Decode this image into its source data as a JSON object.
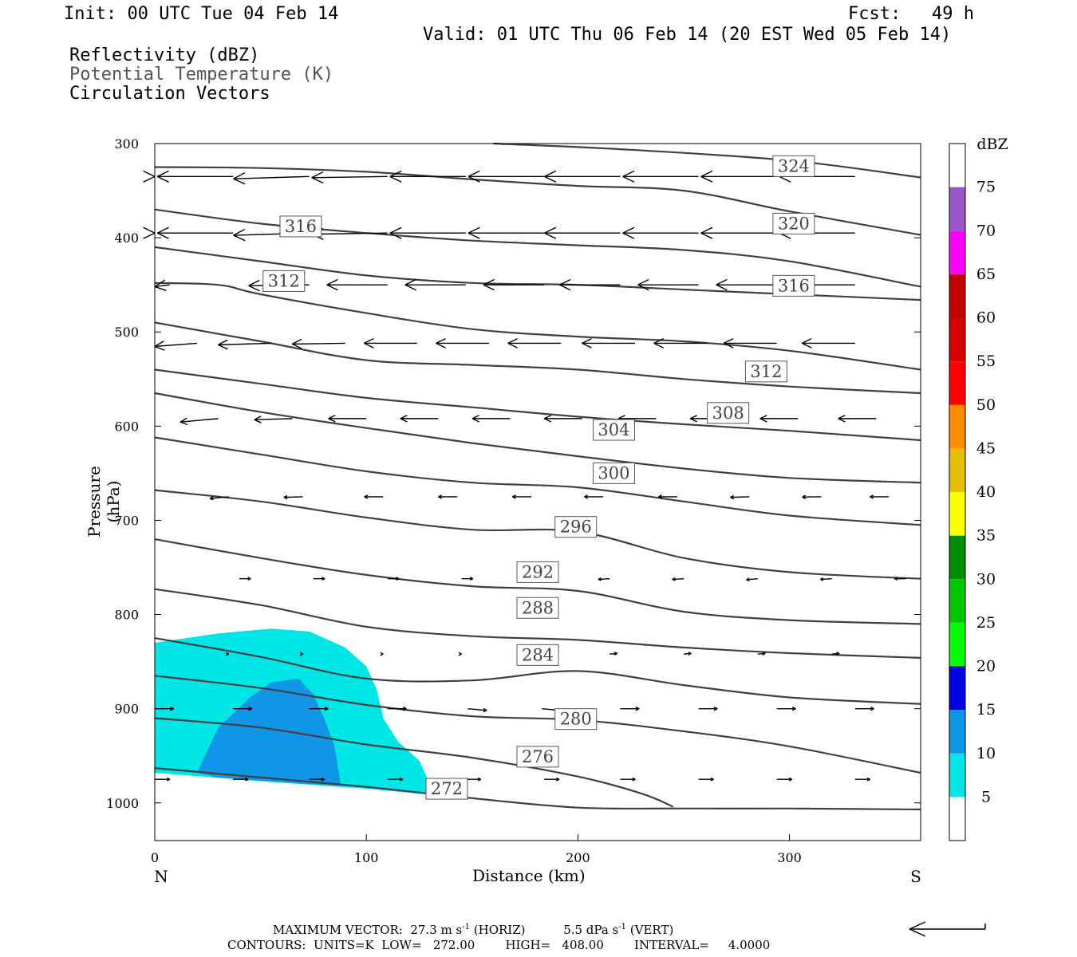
{
  "header": {
    "init": "Init: 00 UTC Tue 04 Feb 14",
    "fcst_label": "Fcst:",
    "fcst_value": "49 h",
    "valid": "Valid: 01 UTC Thu 06 Feb 14 (20 EST Wed 05 Feb 14)",
    "field1": "Reflectivity (dBZ)",
    "field2": "Potential Temperature (K)",
    "field3": "Circulation Vectors"
  },
  "colors": {
    "dbz5": "#00e5e5",
    "dbz10": "#1096e6",
    "contour": "#404040"
  },
  "chart_data": {
    "type": "contour",
    "xlabel": "Distance (km)",
    "ylabel": "Pressure (hPa)",
    "x_ticks": [
      0,
      100,
      200,
      300
    ],
    "x_end_labels": {
      "left": "N",
      "right": "S"
    },
    "xlim": [
      0,
      362
    ],
    "y_ticks": [
      300,
      400,
      500,
      600,
      700,
      800,
      900,
      1000
    ],
    "ylim": [
      1040,
      300
    ],
    "colorbar": {
      "unit": "dBZ",
      "levels": [
        5,
        10,
        15,
        20,
        25,
        30,
        35,
        40,
        45,
        50,
        55,
        60,
        65,
        70,
        75
      ],
      "colors": [
        "#00e5e5",
        "#1096e6",
        "#0000e6",
        "#00ff00",
        "#00c800",
        "#008c00",
        "#ffff00",
        "#e6c000",
        "#ff8c00",
        "#ff0000",
        "#d60000",
        "#c00000",
        "#ff00ff",
        "#9955c9",
        "#ffffff"
      ]
    },
    "theta_contours": [
      {
        "value": 272,
        "label_x": 138,
        "label_p": 985,
        "points": [
          [
            0,
            963
          ],
          [
            50,
            973
          ],
          [
            100,
            983
          ],
          [
            150,
            995
          ],
          [
            200,
            1005
          ],
          [
            250,
            1006
          ],
          [
            300,
            1006
          ],
          [
            362,
            1007
          ]
        ]
      },
      {
        "value": 276,
        "label_x": 181,
        "label_p": 951,
        "points": [
          [
            0,
            910
          ],
          [
            50,
            920
          ],
          [
            100,
            938
          ],
          [
            150,
            952
          ],
          [
            200,
            972
          ],
          [
            230,
            990
          ],
          [
            245,
            1004
          ]
        ]
      },
      {
        "value": 280,
        "label_x": 199,
        "label_p": 911,
        "points": [
          [
            0,
            865
          ],
          [
            50,
            878
          ],
          [
            100,
            896
          ],
          [
            150,
            908
          ],
          [
            200,
            912
          ],
          [
            250,
            924
          ],
          [
            300,
            940
          ],
          [
            362,
            968
          ]
        ]
      },
      {
        "value": 284,
        "label_x": 181,
        "label_p": 843,
        "points": [
          [
            0,
            825
          ],
          [
            50,
            845
          ],
          [
            100,
            868
          ],
          [
            150,
            870
          ],
          [
            200,
            860
          ],
          [
            250,
            875
          ],
          [
            300,
            888
          ],
          [
            362,
            895
          ]
        ]
      },
      {
        "value": 288,
        "label_x": 181,
        "label_p": 793,
        "points": [
          [
            0,
            773
          ],
          [
            50,
            790
          ],
          [
            100,
            813
          ],
          [
            150,
            823
          ],
          [
            200,
            827
          ],
          [
            250,
            835
          ],
          [
            300,
            841
          ],
          [
            362,
            846
          ]
        ]
      },
      {
        "value": 292,
        "label_x": 181,
        "label_p": 755,
        "points": [
          [
            0,
            720
          ],
          [
            50,
            740
          ],
          [
            100,
            758
          ],
          [
            150,
            770
          ],
          [
            200,
            775
          ],
          [
            250,
            797
          ],
          [
            300,
            806
          ],
          [
            362,
            810
          ]
        ]
      },
      {
        "value": 296,
        "label_x": 199,
        "label_p": 707,
        "points": [
          [
            0,
            668
          ],
          [
            50,
            680
          ],
          [
            100,
            697
          ],
          [
            150,
            710
          ],
          [
            200,
            712
          ],
          [
            250,
            740
          ],
          [
            300,
            755
          ],
          [
            362,
            762
          ]
        ]
      },
      {
        "value": 300,
        "label_x": 217,
        "label_p": 650,
        "points": [
          [
            0,
            612
          ],
          [
            50,
            630
          ],
          [
            100,
            648
          ],
          [
            150,
            660
          ],
          [
            200,
            665
          ],
          [
            250,
            680
          ],
          [
            300,
            695
          ],
          [
            362,
            705
          ]
        ]
      },
      {
        "value": 304,
        "label_x": 217,
        "label_p": 604,
        "points": [
          [
            0,
            565
          ],
          [
            50,
            585
          ],
          [
            100,
            602
          ],
          [
            150,
            618
          ],
          [
            200,
            632
          ],
          [
            250,
            645
          ],
          [
            300,
            655
          ],
          [
            362,
            660
          ]
        ]
      },
      {
        "value": 308,
        "label_x": 271,
        "label_p": 586,
        "points": [
          [
            0,
            540
          ],
          [
            50,
            555
          ],
          [
            100,
            570
          ],
          [
            150,
            580
          ],
          [
            200,
            590
          ],
          [
            250,
            598
          ],
          [
            300,
            605
          ],
          [
            362,
            615
          ]
        ]
      },
      {
        "value": 312,
        "label_x": 289,
        "label_p": 542,
        "points": [
          [
            0,
            490
          ],
          [
            50,
            510
          ],
          [
            100,
            530
          ],
          [
            150,
            535
          ],
          [
            200,
            540
          ],
          [
            250,
            550
          ],
          [
            300,
            558
          ],
          [
            362,
            565
          ]
        ]
      },
      {
        "value": 312,
        "label_x": 61,
        "label_p": 446,
        "points": [
          [
            0,
            448
          ],
          [
            30,
            450
          ],
          [
            50,
            460
          ],
          [
            100,
            480
          ],
          [
            150,
            497
          ],
          [
            200,
            505
          ],
          [
            250,
            510
          ],
          [
            300,
            520
          ],
          [
            362,
            540
          ]
        ]
      },
      {
        "value": 316,
        "label_x": 302,
        "label_p": 451,
        "points": [
          [
            0,
            410
          ],
          [
            50,
            425
          ],
          [
            100,
            440
          ],
          [
            150,
            448
          ],
          [
            200,
            450
          ],
          [
            250,
            455
          ],
          [
            300,
            460
          ],
          [
            362,
            466
          ]
        ]
      },
      {
        "value": 316,
        "label_x": 69,
        "label_p": 388,
        "points": [
          [
            0,
            370
          ],
          [
            50,
            385
          ],
          [
            100,
            395
          ],
          [
            150,
            403
          ],
          [
            200,
            408
          ],
          [
            250,
            413
          ],
          [
            300,
            425
          ],
          [
            362,
            452
          ]
        ]
      },
      {
        "value": 320,
        "label_x": 302,
        "label_p": 385,
        "points": [
          [
            0,
            325
          ],
          [
            50,
            326
          ],
          [
            100,
            330
          ],
          [
            150,
            338
          ],
          [
            200,
            345
          ],
          [
            250,
            350
          ],
          [
            300,
            372
          ],
          [
            362,
            397
          ]
        ]
      },
      {
        "value": 324,
        "label_x": 302,
        "label_p": 324,
        "points": [
          [
            160,
            300
          ],
          [
            220,
            306
          ],
          [
            300,
            318
          ],
          [
            362,
            336
          ]
        ]
      }
    ],
    "reflectivity_regions": [
      {
        "dbz": 5,
        "outline": [
          [
            0,
            830
          ],
          [
            30,
            820
          ],
          [
            55,
            815
          ],
          [
            73,
            818
          ],
          [
            90,
            835
          ],
          [
            100,
            855
          ],
          [
            105,
            880
          ],
          [
            108,
            910
          ],
          [
            115,
            935
          ],
          [
            125,
            955
          ],
          [
            130,
            980
          ],
          [
            133,
            992
          ],
          [
            100,
            985
          ],
          [
            50,
            977
          ],
          [
            0,
            968
          ]
        ]
      },
      {
        "dbz": 10,
        "outline": [
          [
            20,
            968
          ],
          [
            30,
            920
          ],
          [
            45,
            888
          ],
          [
            55,
            872
          ],
          [
            68,
            868
          ],
          [
            75,
            885
          ],
          [
            80,
            910
          ],
          [
            85,
            940
          ],
          [
            88,
            982
          ],
          [
            60,
            978
          ],
          [
            30,
            973
          ]
        ]
      }
    ],
    "circulation_vectors": [
      {
        "p": 335,
        "xs": [
          0,
          37,
          73,
          110,
          147,
          184,
          220,
          257,
          294,
          331
        ],
        "u": [
          -1,
          -1,
          -1,
          -1,
          -1,
          -1,
          -1,
          -1,
          -1,
          -1
        ],
        "w": [
          0,
          0,
          0.1,
          0.05,
          0,
          0,
          0,
          0,
          0,
          0
        ],
        "mag": 1
      },
      {
        "p": 395,
        "xs": [
          0,
          37,
          73,
          110,
          147,
          184,
          220,
          257,
          294,
          331
        ],
        "u": [
          -1,
          -1,
          -1,
          -1,
          -1,
          -1,
          -1,
          -1,
          -1,
          -1
        ],
        "w": [
          0,
          0,
          0.1,
          0.05,
          0,
          0,
          0,
          0,
          0,
          0
        ],
        "mag": 1
      },
      {
        "p": 450,
        "xs": [
          7,
          73,
          110,
          147,
          184,
          220,
          257,
          294,
          331
        ],
        "u": [
          -1,
          -1,
          -1,
          -1,
          -1,
          -1,
          -1,
          -1,
          -1
        ],
        "w": [
          0.1,
          0.05,
          0,
          0,
          0,
          0,
          0,
          0,
          0
        ],
        "mag": 0.8
      },
      {
        "p": 512,
        "xs": [
          20,
          55,
          90,
          124,
          158,
          192,
          227,
          261,
          294,
          331
        ],
        "u": [
          -1,
          -1,
          -1,
          -1,
          -1,
          -1,
          -1,
          -1,
          -1,
          -1
        ],
        "w": [
          0.2,
          0.1,
          0.05,
          0,
          0,
          0,
          0,
          0,
          0,
          0
        ],
        "mag": 0.7
      },
      {
        "p": 592,
        "xs": [
          30,
          65,
          100,
          134,
          168,
          202,
          237,
          271,
          304,
          341
        ],
        "u": [
          -1,
          -1,
          -1,
          -1,
          -1,
          -1,
          -1,
          -1,
          -1,
          -1
        ],
        "w": [
          0.3,
          0.1,
          0,
          0,
          0,
          0,
          0,
          0,
          0,
          0
        ],
        "mag": 0.5
      },
      {
        "p": 675,
        "xs": [
          35,
          70,
          108,
          143,
          178,
          212,
          247,
          281,
          315,
          347
        ],
        "u": [
          -1,
          -1,
          -1,
          -1,
          -1,
          -1,
          -1,
          -1,
          -1,
          -1
        ],
        "w": [
          0.3,
          0.1,
          0,
          0,
          0,
          0,
          0,
          0.1,
          0.05,
          0
        ],
        "mag": 0.25
      },
      {
        "p": 762,
        "xs": [
          40,
          75,
          110,
          145,
          180,
          215,
          250,
          285,
          320,
          355
        ],
        "u": [
          1,
          1,
          1,
          1,
          -1,
          -1,
          -1,
          -1,
          -1,
          -1
        ],
        "w": [
          0,
          0,
          0,
          0,
          0,
          0.2,
          0.2,
          0.3,
          0.2,
          0
        ],
        "mag": 0.15
      },
      {
        "p": 842,
        "xs": [
          35,
          70,
          108,
          145,
          180,
          215,
          250,
          285,
          320
        ],
        "u": [
          0,
          0,
          0,
          0,
          0,
          1,
          1,
          1,
          1
        ],
        "w": [
          0,
          0,
          0,
          0,
          0,
          -0.3,
          -0.3,
          -0.3,
          -0.3
        ],
        "mag": 0.1
      },
      {
        "p": 900,
        "xs": [
          0,
          37,
          73,
          110,
          148,
          183,
          220,
          257,
          294,
          331
        ],
        "u": [
          1,
          1,
          1,
          1,
          1,
          1,
          1,
          1,
          1,
          1
        ],
        "w": [
          0,
          0,
          0,
          0,
          0.3,
          0.3,
          0,
          0,
          0,
          0
        ],
        "mag": 0.25
      },
      {
        "p": 975,
        "xs": [
          0,
          37,
          73,
          110,
          147,
          184,
          220,
          257,
          294,
          331
        ],
        "u": [
          1,
          1,
          1,
          1,
          1,
          1,
          1,
          1,
          1,
          1
        ],
        "w": [
          0,
          0,
          0,
          0,
          0,
          0,
          0,
          0,
          0,
          0
        ],
        "mag": 0.2
      }
    ],
    "footer": {
      "line1a": "MAXIMUM VECTOR:  27.3 m s",
      "line1b": "(HORIZ)",
      "line1c": "5.5 dPa s",
      "line1d": "(VERT)",
      "line2": "CONTOURS:  UNITS=K  LOW=   272.00        HIGH=   408.00        INTERVAL=     4.0000"
    }
  }
}
